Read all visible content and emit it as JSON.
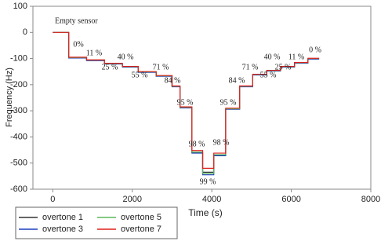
{
  "chart_data": {
    "type": "line",
    "x_label": "Time (s)",
    "y_label": "Frequency (Hz)",
    "xlim": [
      -500,
      8000
    ],
    "xticks": [
      0,
      2000,
      4000,
      6000,
      8000
    ],
    "ylim": [
      -600,
      100
    ],
    "yticks": [
      -600,
      -500,
      -400,
      -300,
      -200,
      -100,
      0,
      100
    ],
    "x": [
      0,
      400,
      400,
      850,
      850,
      1300,
      1300,
      1750,
      1750,
      2150,
      2150,
      2600,
      2600,
      3000,
      3000,
      3200,
      3200,
      3500,
      3500,
      3770,
      3770,
      4050,
      4050,
      4350,
      4350,
      4700,
      4700,
      5030,
      5030,
      5380,
      5380,
      5730,
      5730,
      6080,
      6080,
      6420,
      6420,
      6700
    ],
    "series": [
      {
        "name": "overtone 1",
        "color": "#333333",
        "values": [
          0,
          0,
          -97,
          -97,
          -107,
          -107,
          -120,
          -120,
          -132,
          -132,
          -152,
          -152,
          -167,
          -167,
          -207,
          -207,
          -288,
          -288,
          -460,
          -460,
          -535,
          -535,
          -470,
          -470,
          -293,
          -293,
          -207,
          -207,
          -162,
          -162,
          -147,
          -147,
          -132,
          -132,
          -117,
          -117,
          -101,
          -101
        ]
      },
      {
        "name": "overtone 3",
        "color": "#1f3fbf",
        "values": [
          0,
          0,
          -98,
          -98,
          -108,
          -108,
          -121,
          -121,
          -133,
          -133,
          -153,
          -153,
          -168,
          -168,
          -208,
          -208,
          -289,
          -289,
          -462,
          -462,
          -545,
          -545,
          -472,
          -472,
          -294,
          -294,
          -208,
          -208,
          -163,
          -163,
          -148,
          -148,
          -133,
          -133,
          -118,
          -118,
          -102,
          -102
        ]
      },
      {
        "name": "overtone 5",
        "color": "#5cb85c",
        "values": [
          0,
          0,
          -96,
          -96,
          -106,
          -106,
          -119,
          -119,
          -131,
          -131,
          -151,
          -151,
          -166,
          -166,
          -206,
          -206,
          -287,
          -287,
          -458,
          -458,
          -540,
          -540,
          -468,
          -468,
          -292,
          -292,
          -206,
          -206,
          -161,
          -161,
          -146,
          -146,
          -131,
          -131,
          -116,
          -116,
          -100,
          -100
        ]
      },
      {
        "name": "overtone 7",
        "color": "#e0201c",
        "values": [
          0,
          0,
          -95,
          -95,
          -105,
          -105,
          -118,
          -118,
          -130,
          -130,
          -150,
          -150,
          -165,
          -165,
          -205,
          -205,
          -285,
          -285,
          -452,
          -452,
          -520,
          -520,
          -462,
          -462,
          -290,
          -290,
          -205,
          -205,
          -160,
          -160,
          -145,
          -145,
          -130,
          -130,
          -115,
          -115,
          -99,
          -99
        ]
      }
    ],
    "annotations": [
      "Empty sensor",
      "0%",
      "11 %",
      "25 %",
      "40 %",
      "55 %",
      "71 %",
      "84 %",
      "95 %",
      "98 %",
      "99 %",
      "98 %",
      "95 %",
      "84 %",
      "71 %",
      "55 %",
      "40 %",
      "25 %",
      "11 %",
      "0 %"
    ]
  }
}
